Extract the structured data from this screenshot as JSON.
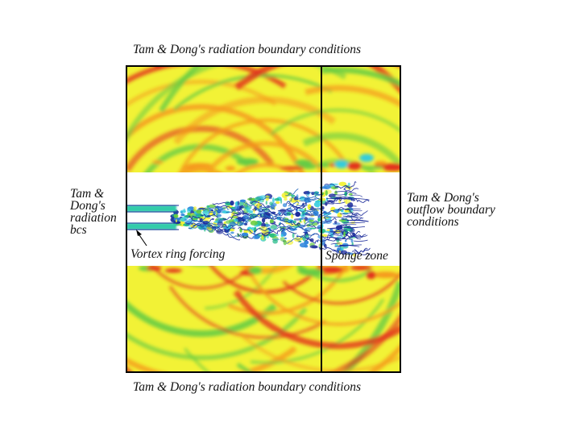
{
  "labels": {
    "top": "Tam & Dong's radiation boundary conditions",
    "bottom": "Tam & Dong's radiation boundary conditions",
    "left": "Tam &\nDong's\nradiation\nbcs",
    "right": "Tam & Dong's\noutflow boundary\nconditions",
    "vortex": "Vortex ring forcing",
    "sponge": "Sponge zone"
  },
  "colors": {
    "field_base": "#f2f236",
    "wave_green": "#66cc44",
    "wave_orange": "#f59a1c",
    "wave_red": "#e2301c",
    "jet_cyan": "#33ccdd",
    "jet_blue": "#1a2a9a",
    "outline": "#000000"
  }
}
